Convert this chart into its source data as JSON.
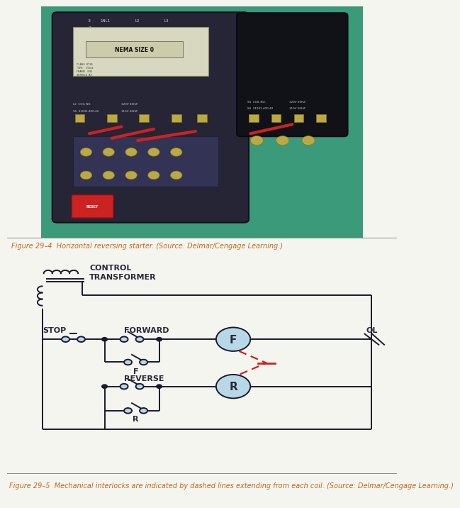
{
  "bg_color": "#f5f5f0",
  "diagram_bg": "#b8d8e8",
  "fig_caption1": "Figure 29–4  Horizontal reversing starter. (Source: Delmar/Cengage Learning.)",
  "fig_caption2": "Figure 29–5  Mechanical interlocks are indicated by dashed lines extending from each coil. (Source: Delmar/Cengage Learning.)",
  "caption_color": "#c06820",
  "line_color": "#1a1a2e",
  "dashed_color": "#cc2222",
  "text_color": "#2a2a3a",
  "label_forward": "FORWARD",
  "label_reverse": "REVERSE",
  "label_stop": "STOP",
  "label_ol": "OL",
  "label_f": "F",
  "label_r": "R",
  "label_ctrl": "CONTROL\nTRANSFORMER",
  "font_size_label": 8,
  "font_size_caption": 7.0,
  "photo_bg": "#3a9a7a",
  "photo_device_color": "#2a2a3d",
  "photo_device2_color": "#111118"
}
